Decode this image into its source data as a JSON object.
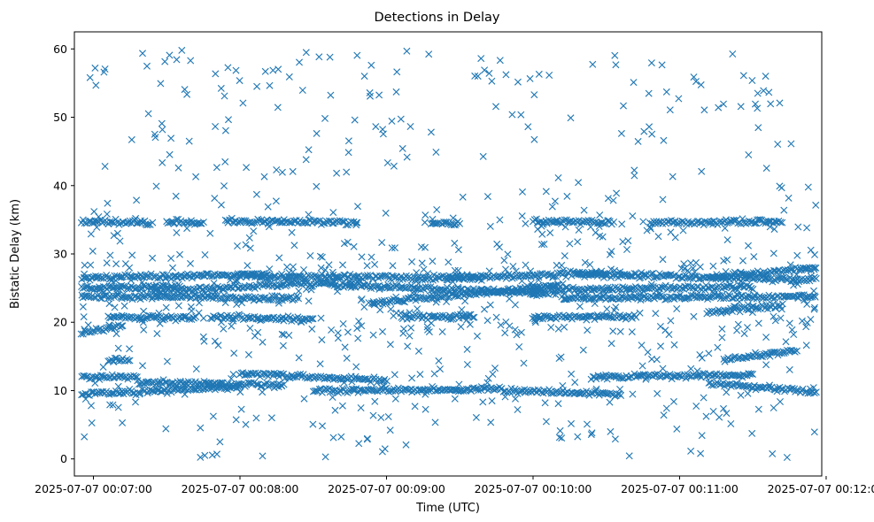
{
  "chart_data": {
    "type": "scatter",
    "title": "Detections in Delay",
    "xlabel": "Time (UTC)",
    "ylabel": "Bistatic Delay (km)",
    "marker": "x",
    "color": "#1f77b4",
    "xlim_minutes": [
      6.87,
      11.97
    ],
    "ylim": [
      -2.5,
      62.5
    ],
    "x_ticks": [
      {
        "value": 7,
        "label": "2025-07-07 00:07:00"
      },
      {
        "value": 8,
        "label": "2025-07-07 00:08:00"
      },
      {
        "value": 9,
        "label": "2025-07-07 00:09:00"
      },
      {
        "value": 10,
        "label": "2025-07-07 00:10:00"
      },
      {
        "value": 11,
        "label": "2025-07-07 00:11:00"
      },
      {
        "value": 12,
        "label": "2025-07-07 00:12:00"
      }
    ],
    "y_ticks": [
      0,
      10,
      20,
      30,
      40,
      50,
      60
    ],
    "x_range_data": [
      6.92,
      11.93
    ],
    "tracks": [
      {
        "x0": 6.92,
        "x1": 8.2,
        "y0": 26.5,
        "y1": 27.0
      },
      {
        "x0": 8.0,
        "x1": 9.6,
        "y0": 26.8,
        "y1": 26.5
      },
      {
        "x0": 9.4,
        "x1": 10.5,
        "y0": 26.5,
        "y1": 27.2
      },
      {
        "x0": 10.3,
        "x1": 11.93,
        "y0": 27.0,
        "y1": 26.2
      },
      {
        "x0": 6.92,
        "x1": 7.6,
        "y0": 25.0,
        "y1": 25.2
      },
      {
        "x0": 7.4,
        "x1": 8.6,
        "y0": 24.5,
        "y1": 25.8
      },
      {
        "x0": 8.6,
        "x1": 10.1,
        "y0": 25.5,
        "y1": 24.2
      },
      {
        "x0": 10.0,
        "x1": 11.5,
        "y0": 24.8,
        "y1": 25.2
      },
      {
        "x0": 11.2,
        "x1": 11.93,
        "y0": 26.5,
        "y1": 28.0
      },
      {
        "x0": 6.92,
        "x1": 8.4,
        "y0": 23.8,
        "y1": 23.5
      },
      {
        "x0": 8.9,
        "x1": 10.2,
        "y0": 22.8,
        "y1": 25.5
      },
      {
        "x0": 10.2,
        "x1": 11.93,
        "y0": 23.5,
        "y1": 23.8
      },
      {
        "x0": 11.2,
        "x1": 11.7,
        "y0": 21.5,
        "y1": 22.5
      },
      {
        "x0": 6.92,
        "x1": 7.2,
        "y0": 18.3,
        "y1": 19.5
      },
      {
        "x0": 7.1,
        "x1": 7.7,
        "y0": 20.8,
        "y1": 20.6
      },
      {
        "x0": 7.8,
        "x1": 8.5,
        "y0": 20.8,
        "y1": 20.4
      },
      {
        "x0": 9.1,
        "x1": 9.6,
        "y0": 20.8,
        "y1": 20.8
      },
      {
        "x0": 10.0,
        "x1": 10.7,
        "y0": 20.8,
        "y1": 20.8
      },
      {
        "x0": 6.92,
        "x1": 7.4,
        "y0": 34.8,
        "y1": 34.5
      },
      {
        "x0": 7.5,
        "x1": 7.75,
        "y0": 34.8,
        "y1": 34.5
      },
      {
        "x0": 7.9,
        "x1": 8.8,
        "y0": 34.8,
        "y1": 34.6
      },
      {
        "x0": 9.3,
        "x1": 9.5,
        "y0": 34.5,
        "y1": 34.4
      },
      {
        "x0": 10.0,
        "x1": 10.55,
        "y0": 34.8,
        "y1": 34.6
      },
      {
        "x0": 10.8,
        "x1": 11.7,
        "y0": 34.6,
        "y1": 34.7
      },
      {
        "x0": 6.92,
        "x1": 7.3,
        "y0": 12.0,
        "y1": 12.0
      },
      {
        "x0": 6.92,
        "x1": 8.0,
        "y0": 9.5,
        "y1": 10.5
      },
      {
        "x0": 7.3,
        "x1": 8.3,
        "y0": 11.2,
        "y1": 10.8
      },
      {
        "x0": 8.0,
        "x1": 9.0,
        "y0": 12.5,
        "y1": 11.5
      },
      {
        "x0": 8.5,
        "x1": 9.8,
        "y0": 10.0,
        "y1": 10.2
      },
      {
        "x0": 9.8,
        "x1": 10.6,
        "y0": 10.0,
        "y1": 9.5
      },
      {
        "x0": 10.4,
        "x1": 11.5,
        "y0": 12.0,
        "y1": 12.3
      },
      {
        "x0": 11.2,
        "x1": 11.93,
        "y0": 11.0,
        "y1": 9.8
      },
      {
        "x0": 11.3,
        "x1": 11.8,
        "y0": 14.5,
        "y1": 16.0
      },
      {
        "x0": 7.1,
        "x1": 7.25,
        "y0": 14.5,
        "y1": 14.5
      }
    ]
  }
}
